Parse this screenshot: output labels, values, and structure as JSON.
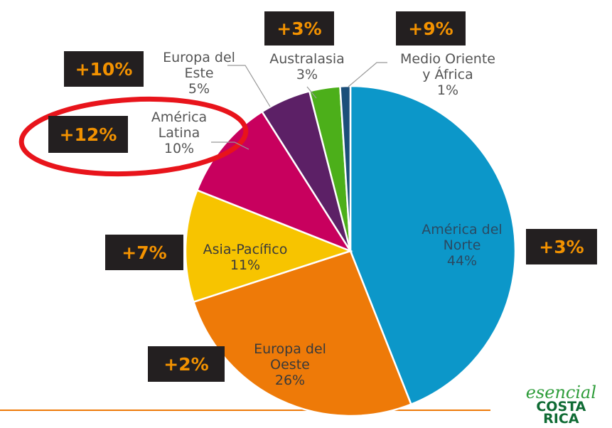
{
  "chart_data": {
    "type": "pie",
    "categories": [
      "América del Norte",
      "Europa del Oeste",
      "Asia-Pacífico",
      "América Latina",
      "Europa del Este",
      "Australasia",
      "Medio Oriente y África"
    ],
    "values": [
      44,
      26,
      11,
      10,
      5,
      3,
      1
    ],
    "value_labels": [
      "44%",
      "26%",
      "11%",
      "10%",
      "5%",
      "3%",
      "1%"
    ],
    "colors": [
      "#0c97c9",
      "#ee7a08",
      "#f7c400",
      "#c8005e",
      "#5c2066",
      "#4caf1a",
      "#1b4f7a"
    ],
    "growth": [
      3,
      2,
      7,
      12,
      10,
      3,
      9
    ],
    "growth_labels": [
      "+3%",
      "+2%",
      "+7%",
      "+12%",
      "+10%",
      "+3%",
      "+9%"
    ],
    "highlight": "América Latina",
    "logo": [
      "esencial",
      "COSTA",
      "RICA"
    ]
  }
}
